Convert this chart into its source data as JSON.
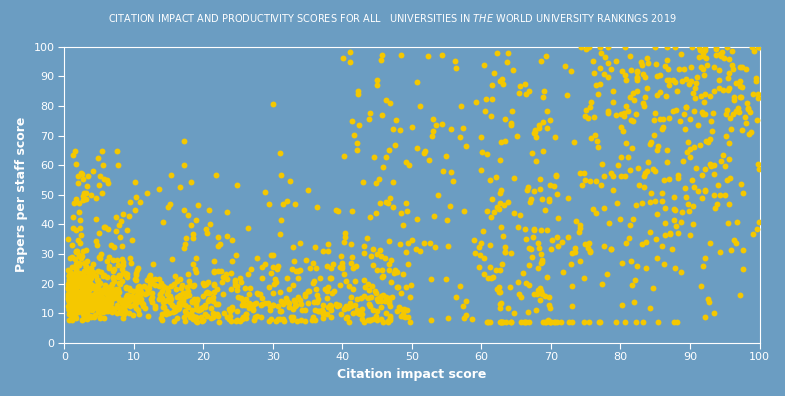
{
  "title": "CITATION IMPACT AND PRODUCTIVITY SCORES FOR ALL   UNIVERSITIES IN $\\mathit{THE}$ WORLD UNIVERSITY RANKINGS 2019",
  "xlabel": "Citation impact score",
  "ylabel": "Papers per staff score",
  "background_color": "#6B9DC2",
  "dot_color": "#F5C800",
  "xlim": [
    0,
    100
  ],
  "ylim": [
    0,
    100
  ],
  "xticks": [
    0,
    10,
    20,
    30,
    40,
    50,
    60,
    70,
    80,
    90,
    100
  ],
  "yticks": [
    0,
    10,
    20,
    30,
    40,
    50,
    60,
    70,
    80,
    90,
    100
  ],
  "tick_color": "white",
  "label_color": "white",
  "title_color": "white",
  "dot_size": 18,
  "dot_alpha": 1.0,
  "seed": 42
}
